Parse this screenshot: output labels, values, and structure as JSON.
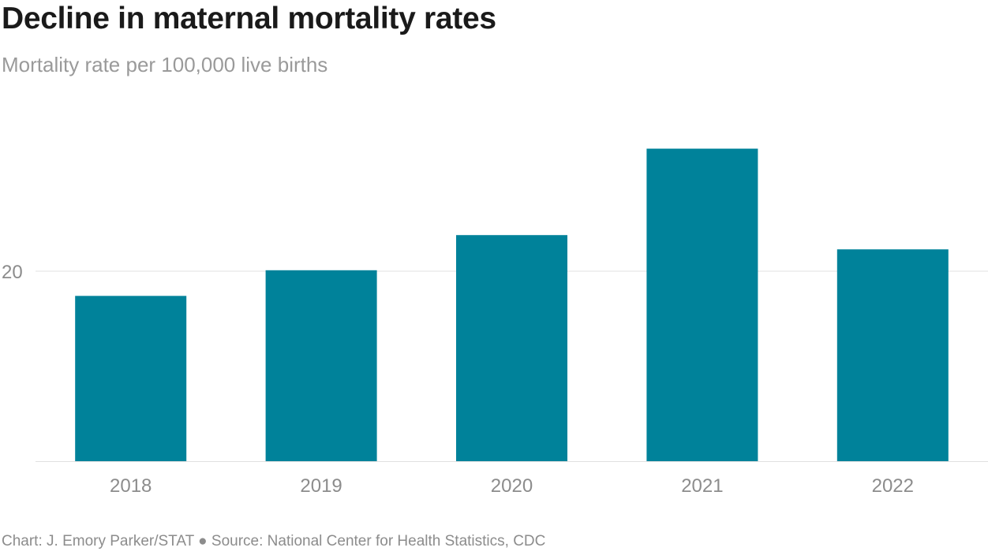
{
  "header": {
    "title": "Decline in maternal mortality rates",
    "subtitle": "Mortality rate per 100,000 live births"
  },
  "footer": {
    "credit": "Chart: J. Emory Parker/STAT ● Source: National Center for Health Statistics, CDC"
  },
  "colors": {
    "bar": "#00829a",
    "gridline": "#e0e0e0",
    "axis_text": "#8c8c8c"
  },
  "chart_data": {
    "type": "bar",
    "title": "Decline in maternal mortality rates",
    "subtitle": "Mortality rate per 100,000 live births",
    "categories": [
      "2018",
      "2019",
      "2020",
      "2021",
      "2022"
    ],
    "values": [
      17.4,
      20.1,
      23.8,
      32.9,
      22.3
    ],
    "ylabel": "Mortality rate per 100,000 live births",
    "xlabel": "",
    "ylim": [
      0,
      33
    ],
    "yticks": [
      20
    ],
    "ytick_labels": [
      "20"
    ],
    "grid": true
  }
}
